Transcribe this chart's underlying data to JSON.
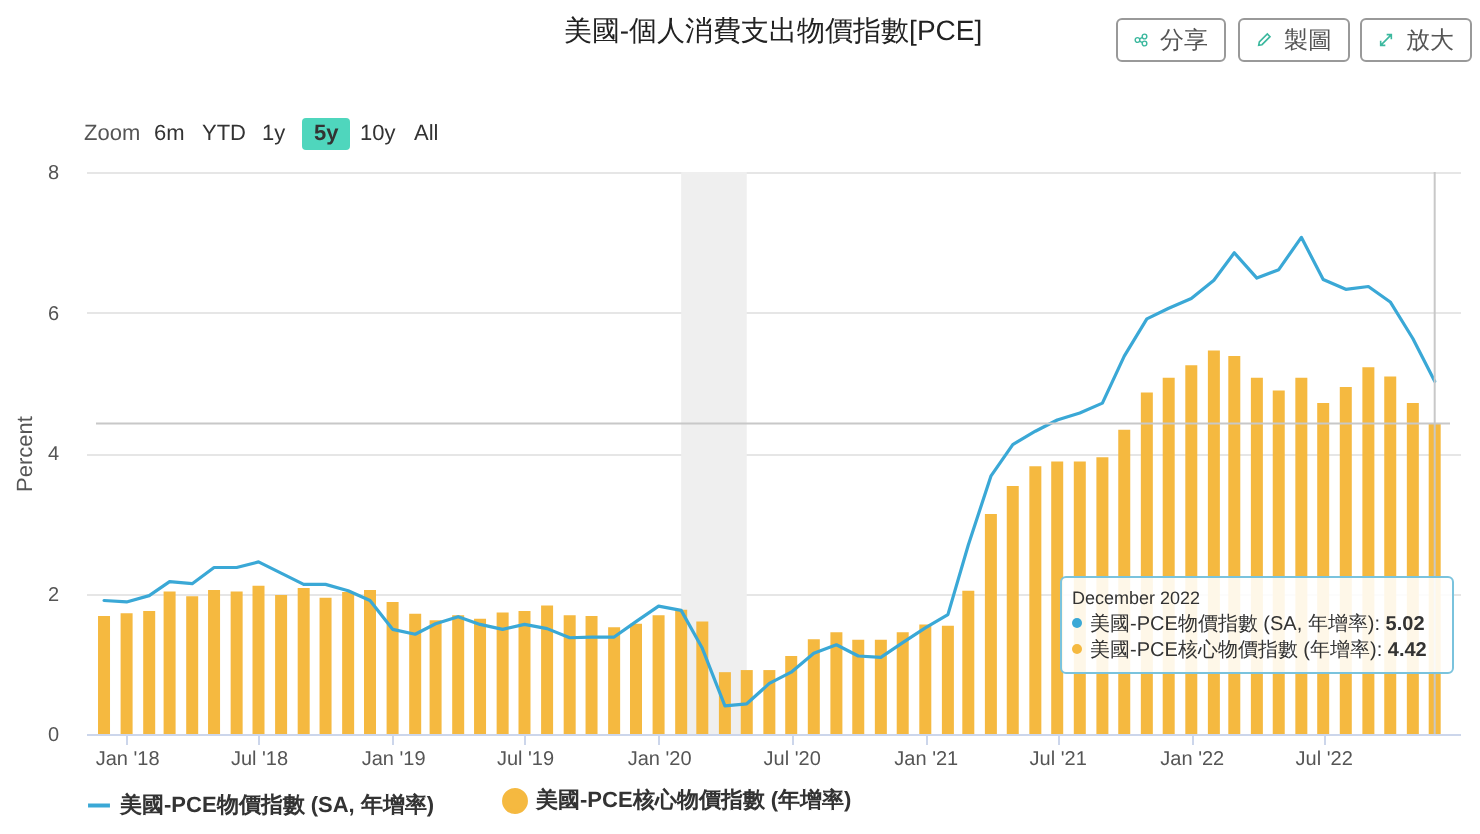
{
  "chart_data": {
    "type": "bar",
    "title": "美國-個人消費支出物價指數[PCE]",
    "ylabel": "Percent",
    "x": [
      "2017-12",
      "2018-01",
      "2018-02",
      "2018-03",
      "2018-04",
      "2018-05",
      "2018-06",
      "2018-07",
      "2018-08",
      "2018-09",
      "2018-10",
      "2018-11",
      "2018-12",
      "2019-01",
      "2019-02",
      "2019-03",
      "2019-04",
      "2019-05",
      "2019-06",
      "2019-07",
      "2019-08",
      "2019-09",
      "2019-10",
      "2019-11",
      "2019-12",
      "2020-01",
      "2020-02",
      "2020-03",
      "2020-04",
      "2020-05",
      "2020-06",
      "2020-07",
      "2020-08",
      "2020-09",
      "2020-10",
      "2020-11",
      "2020-12",
      "2021-01",
      "2021-02",
      "2021-03",
      "2021-04",
      "2021-05",
      "2021-06",
      "2021-07",
      "2021-08",
      "2021-09",
      "2021-10",
      "2021-11",
      "2021-12",
      "2022-01",
      "2022-02",
      "2022-03",
      "2022-04",
      "2022-05",
      "2022-06",
      "2022-07",
      "2022-08",
      "2022-09",
      "2022-10",
      "2022-11",
      "2022-12"
    ],
    "series": [
      {
        "name": "美國-PCE物價指數 (SA, 年增率)",
        "type": "line",
        "color": "#3aa8d6",
        "values": [
          1.9,
          1.88,
          1.97,
          2.17,
          2.14,
          2.37,
          2.37,
          2.45,
          2.29,
          2.13,
          2.13,
          2.04,
          1.9,
          1.49,
          1.42,
          1.57,
          1.67,
          1.56,
          1.49,
          1.56,
          1.5,
          1.37,
          1.38,
          1.38,
          1.6,
          1.82,
          1.76,
          1.22,
          0.4,
          0.43,
          0.72,
          0.88,
          1.15,
          1.27,
          1.11,
          1.09,
          1.3,
          1.51,
          1.7,
          2.69,
          3.67,
          4.12,
          4.31,
          4.47,
          4.57,
          4.71,
          5.38,
          5.91,
          6.06,
          6.2,
          6.46,
          6.85,
          6.49,
          6.61,
          7.07,
          6.47,
          6.33,
          6.37,
          6.15,
          5.63,
          5.02
        ]
      },
      {
        "name": "美國-PCE核心物價指數 (年增率)",
        "color": "#f5b940",
        "values": [
          1.68,
          1.72,
          1.75,
          2.03,
          1.96,
          2.05,
          2.03,
          2.11,
          1.98,
          2.08,
          1.94,
          2.02,
          2.05,
          1.88,
          1.71,
          1.62,
          1.69,
          1.64,
          1.73,
          1.75,
          1.83,
          1.69,
          1.68,
          1.52,
          1.57,
          1.69,
          1.77,
          1.6,
          0.88,
          0.91,
          0.91,
          1.11,
          1.35,
          1.45,
          1.34,
          1.34,
          1.45,
          1.56,
          1.54,
          2.04,
          3.13,
          3.53,
          3.81,
          3.88,
          3.88,
          3.94,
          4.33,
          4.86,
          5.07,
          5.25,
          5.46,
          5.38,
          5.07,
          4.89,
          5.07,
          4.71,
          4.94,
          5.22,
          5.09,
          4.71,
          4.42
        ]
      }
    ],
    "xlim": [
      "2017-11-20",
      "2022-12-22"
    ],
    "xticks": [
      {
        "value": "2018-01",
        "label": "Jan '18"
      },
      {
        "value": "2018-07",
        "label": "Jul '18"
      },
      {
        "value": "2019-01",
        "label": "Jan '19"
      },
      {
        "value": "2019-07",
        "label": "Jul '19"
      },
      {
        "value": "2020-01",
        "label": "Jan '20"
      },
      {
        "value": "2020-07",
        "label": "Jul '20"
      },
      {
        "value": "2021-01",
        "label": "Jan '21"
      },
      {
        "value": "2021-07",
        "label": "Jul '21"
      },
      {
        "value": "2022-01",
        "label": "Jan '22"
      },
      {
        "value": "2022-07",
        "label": "Jul '22"
      }
    ],
    "ylim": [
      0,
      8
    ],
    "yticks": [
      0,
      2,
      4,
      6,
      8
    ],
    "bands": [
      {
        "axis": "x",
        "from": "2020-02",
        "to": "2020-05",
        "color": "#efefef"
      }
    ],
    "ref_lines": [
      {
        "axis": "x",
        "value": "2022-12",
        "color": "#c8c8c8"
      },
      {
        "axis": "y",
        "value": 4.42,
        "color": "#c8c8c8"
      }
    ],
    "grid": "y",
    "legend": "bottom",
    "annotations": [
      "Zoom",
      "6m",
      "YTD",
      "1y",
      "5y",
      "10y",
      "All",
      "分享",
      "製圖",
      "放大",
      "December 2022",
      "美國-PCE物價指數 (SA, 年增率): 5.02",
      "美國-PCE核心物價指數 (年增率): 4.42"
    ]
  }
}
